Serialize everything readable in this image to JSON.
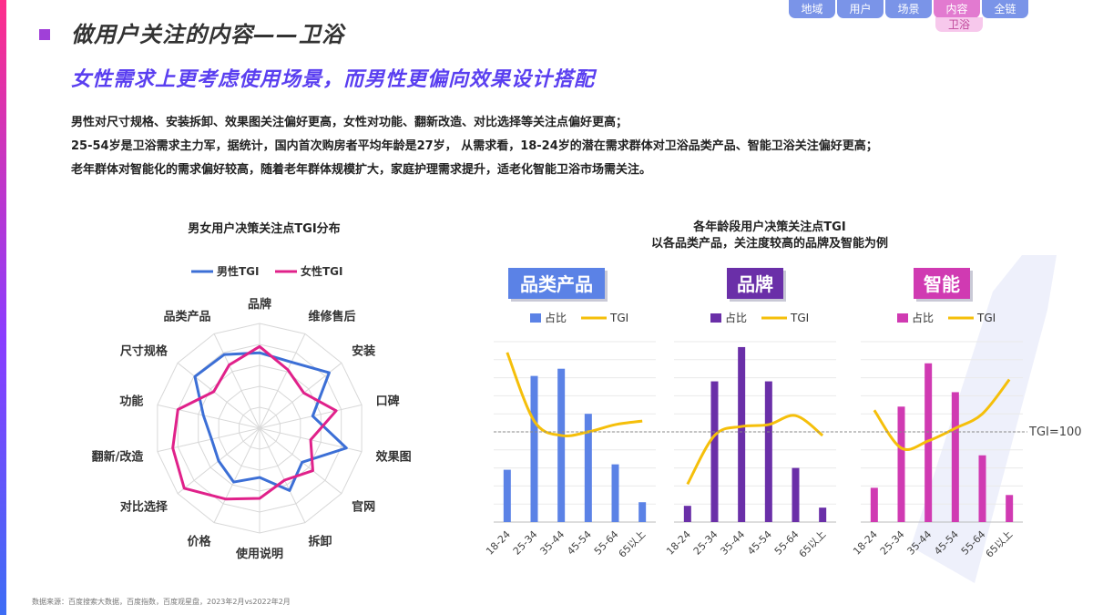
{
  "page": {
    "title": "做用户关注的内容——卫浴",
    "subtitle": "女性需求上更考虑使用场景，而男性更偏向效果设计搭配",
    "paragraphs": [
      "男性对尺寸规格、安装拆卸、效果图关注偏好更高，女性对功能、翻新改造、对比选择等关注点偏好更高；",
      "25-54岁是卫浴需求主力军，据统计，国内首次购房者平均年龄是27岁， 从需求看，18-24岁的潜在需求群体对卫浴品类产品、智能卫浴关注偏好更高；",
      "老年群体对智能化的需求偏好较高，随着老年群体规模扩大，家庭护理需求提升，适老化智能卫浴市场需关注。"
    ],
    "footer": "数据来源：百度搜索大数据，百度指数，百度观星盘，2023年2月vs2022年2月",
    "colors": {
      "title_square": "#a040d8",
      "subtitle": "#5a3ff0"
    }
  },
  "nav": {
    "tabs": [
      {
        "label": "地域",
        "color": "#7a94e8"
      },
      {
        "label": "用户",
        "color": "#7a94e8"
      },
      {
        "label": "场景",
        "color": "#7a94e8"
      },
      {
        "label": "内容",
        "color": "#e27ad0",
        "active": true
      },
      {
        "label": "全链",
        "color": "#7a94e8"
      }
    ],
    "sub_label": "卫浴",
    "sub_color": "#f7c8ec",
    "sub_text_color": "#c0479a"
  },
  "chart_data": [
    {
      "type": "radar",
      "title": "男女用户决策关注点TGI分布",
      "categories": [
        "品牌",
        "维修售后",
        "安装",
        "口碑",
        "效果图",
        "官网",
        "拆卸",
        "使用说明",
        "价格",
        "对比选择",
        "翻新/改造",
        "功能",
        "尺寸规格",
        "品类产品"
      ],
      "rmax": 1.0,
      "legend_position": "top",
      "series": [
        {
          "name": "男性TGI",
          "color": "#3c6fd6",
          "values": [
            0.72,
            0.7,
            0.85,
            0.52,
            0.85,
            0.52,
            0.66,
            0.47,
            0.57,
            0.5,
            0.47,
            0.55,
            0.79,
            0.78
          ]
        },
        {
          "name": "女性TGI",
          "color": "#e0218a",
          "values": [
            0.78,
            0.62,
            0.54,
            0.75,
            0.5,
            0.65,
            0.55,
            0.67,
            0.75,
            0.92,
            0.85,
            0.8,
            0.56,
            0.67
          ]
        }
      ]
    },
    {
      "type": "bar+line",
      "title": "各年龄段用户决策关注点TGI",
      "subtitle": "以各品类产品，关注度较高的品牌及智能为例",
      "reference_label": "TGI=100",
      "reference_value": 100,
      "tgi_range": [
        50,
        150
      ],
      "bar_max": 100,
      "panels": [
        {
          "name": "品类产品",
          "bar_color": "#5b82e6",
          "label_color": "#5b82e6",
          "categories": [
            "18-24",
            "25-34",
            "35-44",
            "45-54",
            "55-64",
            "65以上"
          ],
          "bar_legend": "占比",
          "line_legend": "TGI",
          "bar_values": [
            29,
            81,
            85,
            60,
            32,
            11
          ],
          "tgi_values": [
            144,
            106,
            98,
            100,
            104,
            106
          ]
        },
        {
          "name": "品牌",
          "bar_color": "#6a2fa8",
          "label_color": "#6a2fa8",
          "categories": [
            "18-24",
            "25-34",
            "35-44",
            "45-54",
            "55-64",
            "65以上"
          ],
          "bar_legend": "占比",
          "line_legend": "TGI",
          "bar_values": [
            9,
            78,
            97,
            78,
            30,
            8
          ],
          "tgi_values": [
            71,
            98,
            103,
            104,
            109,
            98
          ]
        },
        {
          "name": "智能",
          "bar_color": "#d03ab2",
          "label_color": "#d03ab2",
          "categories": [
            "18-24",
            "25-34",
            "35-44",
            "45-54",
            "55-64",
            "65以上"
          ],
          "bar_legend": "占比",
          "line_legend": "TGI",
          "bar_values": [
            19,
            64,
            88,
            72,
            37,
            15
          ],
          "tgi_values": [
            112,
            91,
            95,
            102,
            110,
            129
          ]
        }
      ],
      "line_color": "#f5bf0a"
    }
  ]
}
